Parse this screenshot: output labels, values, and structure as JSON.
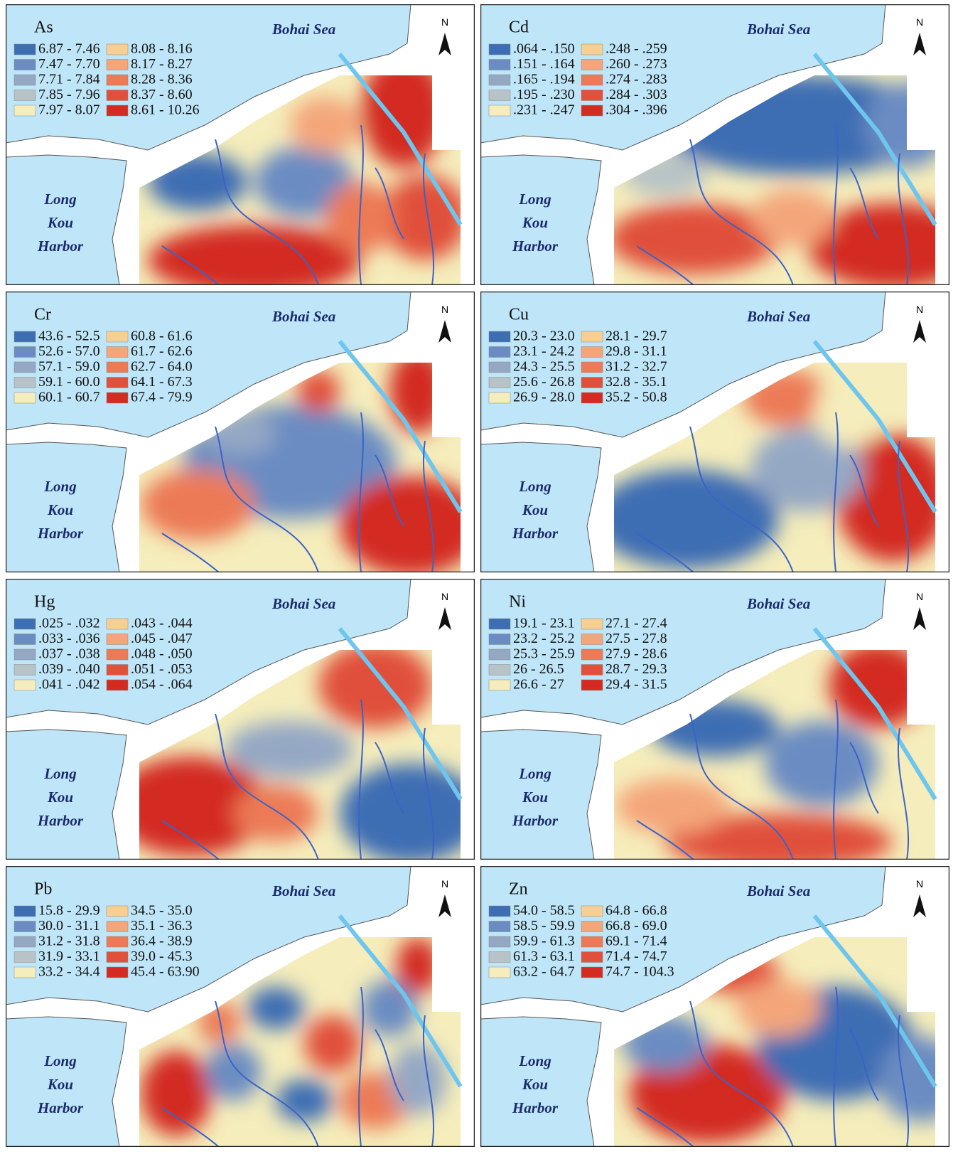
{
  "labels": {
    "sea": "Bohai Sea",
    "harbor": [
      "Long",
      "Kou",
      "Harbor"
    ],
    "north": "N"
  },
  "legend_colors": [
    "#3d6db3",
    "#6a8cc2",
    "#94a8c4",
    "#b7c3c6",
    "#f5edbb",
    "#f8cf93",
    "#f4a67a",
    "#ec7a57",
    "#e0503b",
    "#d32a22"
  ],
  "panels": [
    {
      "element": "As",
      "legend": [
        "6.87 - 7.46",
        "7.47 - 7.70",
        "7.71 - 7.84",
        "7.85 - 7.96",
        "7.97 - 8.07",
        "8.08 - 8.16",
        "8.17 - 8.27",
        "8.28 - 8.36",
        "8.37 - 8.60",
        "8.61 - 10.26"
      ]
    },
    {
      "element": "Cd",
      "legend": [
        ".064 - .150",
        ".151 - .164",
        ".165 - .194",
        ".195 - .230",
        ".231 - .247",
        ".248 - .259",
        ".260 - .273",
        ".274 - .283",
        ".284 - .303",
        ".304 - .396"
      ]
    },
    {
      "element": "Cr",
      "legend": [
        "43.6 - 52.5",
        "52.6 - 57.0",
        "57.1 - 59.0",
        "59.1 - 60.0",
        "60.1 - 60.7",
        "60.8 - 61.6",
        "61.7 - 62.6",
        "62.7 - 64.0",
        "64.1 - 67.3",
        "67.4 - 79.9"
      ]
    },
    {
      "element": "Cu",
      "legend": [
        "20.3 - 23.0",
        "23.1 - 24.2",
        "24.3 - 25.5",
        "25.6 - 26.8",
        "26.9 - 28.0",
        "28.1 - 29.7",
        "29.8 - 31.1",
        "31.2 - 32.7",
        "32.8 - 35.1",
        "35.2 - 50.8"
      ]
    },
    {
      "element": "Hg",
      "legend": [
        ".025 - .032",
        ".033 - .036",
        ".037 - .038",
        ".039 - .040",
        ".041 - .042",
        ".043 - .044",
        ".045 - .047",
        ".048 - .050",
        ".051 - .053",
        ".054 - .064"
      ]
    },
    {
      "element": "Ni",
      "legend": [
        "19.1 - 23.1",
        "23.2 - 25.2",
        "25.3 - 25.9",
        "26 - 26.5",
        "26.6 - 27",
        "27.1 - 27.4",
        "27.5 - 27.8",
        "27.9 - 28.6",
        "28.7 - 29.3",
        "29.4 - 31.5"
      ]
    },
    {
      "element": "Pb",
      "legend": [
        "15.8 - 29.9",
        "30.0 - 31.1",
        "31.2 - 31.8",
        "31.9 - 33.1",
        "33.2 - 34.4",
        "34.5 - 35.0",
        "35.1 - 36.3",
        "36.4 - 38.9",
        "39.0 - 45.3",
        "45.4 - 63.90"
      ]
    },
    {
      "element": "Zn",
      "legend": [
        "54.0 - 58.5",
        "58.5 - 59.9",
        "59.9 - 61.3",
        "61.3 - 63.1",
        "63.2 - 64.7",
        "64.8 - 66.8",
        "66.8 - 69.0",
        "69.1 - 71.4",
        "71.4 - 74.7",
        "74.7 - 104.3"
      ]
    }
  ]
}
